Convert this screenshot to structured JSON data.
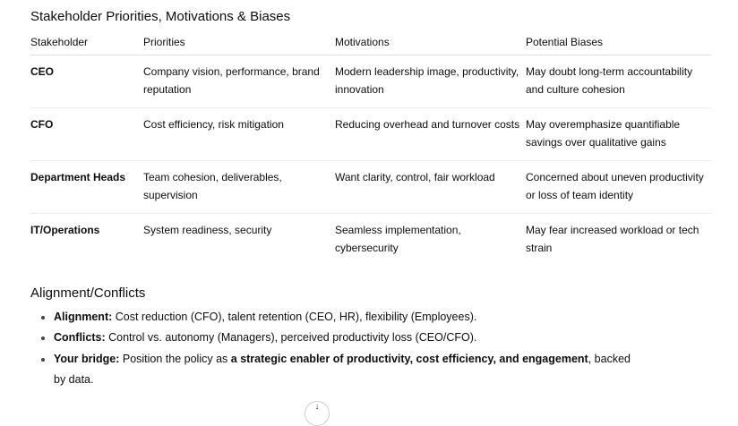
{
  "title": "Stakeholder Priorities, Motivations & Biases",
  "table": {
    "headers": [
      "Stakeholder",
      "Priorities",
      "Motivations",
      "Potential Biases"
    ],
    "rows": [
      [
        "CEO",
        "Company vision, performance, brand reputation",
        "Modern leadership image, productivity, innovation",
        "May doubt long-term accountability and culture cohesion"
      ],
      [
        "CFO",
        "Cost efficiency, risk mitigation",
        "Reducing overhead and turnover costs",
        "May overemphasize quantifiable savings over qualitative gains"
      ],
      [
        "Department Heads",
        "Team cohesion, deliverables, supervision",
        "Want clarity, control, fair workload",
        "Concerned about uneven productivity or loss of team identity"
      ],
      [
        "IT/Operations",
        "System readiness, security",
        "Seamless implementation, cybersecurity",
        "May fear increased workload or tech strain"
      ]
    ]
  },
  "section2": {
    "title": "Alignment/Conflicts",
    "bullets": [
      {
        "label": "Alignment:",
        "text": " Cost reduction (CFO), talent retention (CEO, HR), flexibility (Employees)."
      },
      {
        "label": "Conflicts:",
        "text": " Control vs. autonomy (Managers), perceived productivity loss (CEO/CFO)."
      },
      {
        "label": "Your bridge:",
        "text": " Position the policy as ",
        "bold": "a strategic enabler of productivity, cost efficiency, and engagement",
        "tail": ", backed by data."
      }
    ]
  },
  "scroll_button": {
    "icon": "arrow-down-icon",
    "glyph": "↓"
  }
}
